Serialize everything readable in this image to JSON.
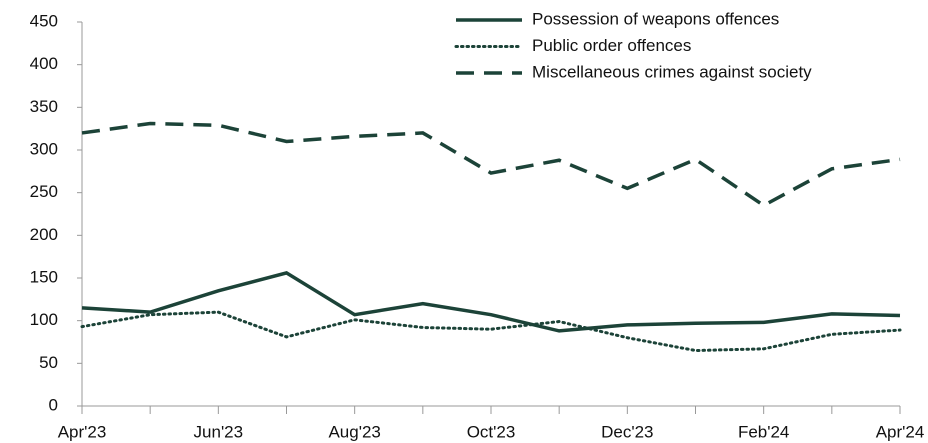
{
  "chart_data": {
    "type": "line",
    "categories": [
      "Apr'23",
      null,
      "Jun'23",
      null,
      "Aug'23",
      null,
      "Oct'23",
      null,
      "Dec'23",
      null,
      "Feb'24",
      null,
      "Apr'24"
    ],
    "series": [
      {
        "name": "Possession of weapons offences",
        "color": "#1c4338",
        "style": "solid",
        "values": [
          115,
          110,
          135,
          156,
          107,
          120,
          107,
          88,
          95,
          97,
          98,
          108,
          106
        ]
      },
      {
        "name": "Public order offences",
        "color": "#1c4338",
        "style": "dotted",
        "values": [
          93,
          107,
          110,
          81,
          101,
          92,
          90,
          99,
          80,
          65,
          67,
          84,
          89
        ]
      },
      {
        "name": "Miscellaneous crimes against society",
        "color": "#1c4338",
        "style": "dashed",
        "values": [
          320,
          331,
          329,
          310,
          316,
          320,
          273,
          288,
          255,
          289,
          235,
          278,
          289
        ]
      }
    ],
    "ylim": [
      0,
      450
    ],
    "yticks": [
      0,
      50,
      100,
      150,
      200,
      250,
      300,
      350,
      400,
      450
    ],
    "legend": "top-right"
  }
}
